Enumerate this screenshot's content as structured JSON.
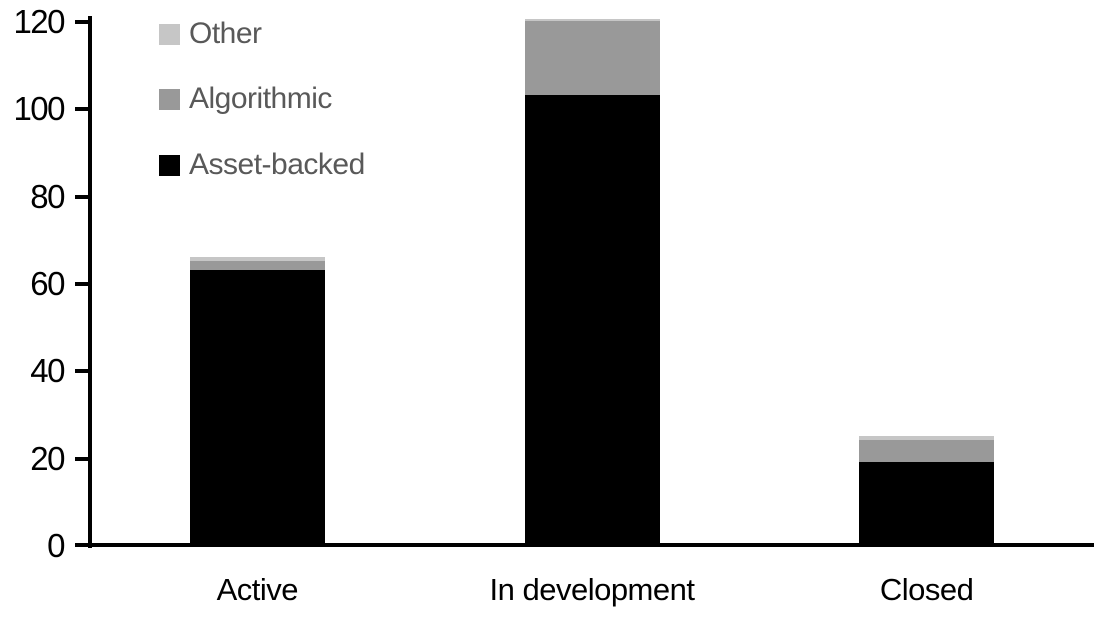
{
  "chart_data": {
    "type": "bar",
    "stacked": true,
    "title": "",
    "categories": [
      "Active",
      "In development",
      "Closed"
    ],
    "series": [
      {
        "name": "Asset-backed",
        "color": "#000000",
        "values": [
          63,
          103,
          19
        ]
      },
      {
        "name": "Algorithmic",
        "color": "#999999",
        "values": [
          2,
          17,
          5
        ]
      },
      {
        "name": "Other",
        "color": "#c6c6c6",
        "values": [
          1,
          0.5,
          1
        ]
      }
    ],
    "stack_order_bottom_to_top": [
      "Asset-backed",
      "Algorithmic",
      "Other"
    ],
    "approx_totals": [
      66,
      120.5,
      25
    ],
    "xlabel": "",
    "ylabel": "",
    "ylim": [
      0,
      120
    ],
    "ytick_step": 20,
    "yticks": [
      0,
      20,
      40,
      60,
      80,
      100,
      120
    ],
    "ytick_labels": [
      "0",
      "20",
      "40",
      "60",
      "80",
      "100",
      "120"
    ],
    "grid": false,
    "legend_position": "top-left",
    "legend_order_top_to_bottom": [
      "Other",
      "Algorithmic",
      "Asset-backed"
    ]
  },
  "legend": {
    "items": [
      {
        "label": "Other",
        "color": "#c6c6c6"
      },
      {
        "label": "Algorithmic",
        "color": "#999999"
      },
      {
        "label": "Asset-backed",
        "color": "#000000"
      }
    ],
    "text_color": "#595959"
  },
  "axis": {
    "line_color": "#000000",
    "label_color": "#000000"
  }
}
